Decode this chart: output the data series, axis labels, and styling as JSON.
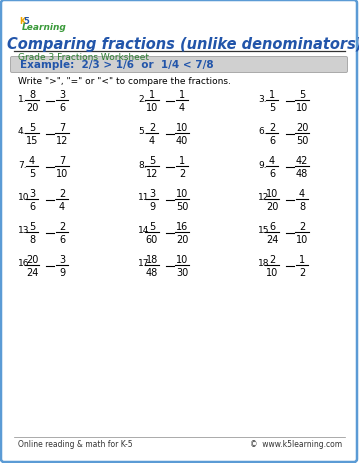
{
  "title": "Comparing fractions (unlike denominators)",
  "subtitle": "Grade 3 Fractions Worksheet",
  "example_text": "Example:  2/3 > 1/6  or  1/4 < 7/8",
  "instruction": "Write \">\", \"=\" or \"<\" to compare the fractions.",
  "border_color": "#5b9bd5",
  "title_color": "#2255aa",
  "subtitle_color": "#2e7d32",
  "example_bg": "#d0d0d0",
  "example_color": "#2255aa",
  "footer_left": "Online reading & math for K-5",
  "footer_right": "©  www.k5learning.com",
  "problems": [
    {
      "num": "1.",
      "n1": "8",
      "d1": "20",
      "n2": "3",
      "d2": "6"
    },
    {
      "num": "2.",
      "n1": "1",
      "d1": "10",
      "n2": "1",
      "d2": "4"
    },
    {
      "num": "3.",
      "n1": "1",
      "d1": "5",
      "n2": "5",
      "d2": "10"
    },
    {
      "num": "4.",
      "n1": "5",
      "d1": "15",
      "n2": "7",
      "d2": "12"
    },
    {
      "num": "5.",
      "n1": "2",
      "d1": "4",
      "n2": "10",
      "d2": "40"
    },
    {
      "num": "6.",
      "n1": "2",
      "d1": "6",
      "n2": "20",
      "d2": "50"
    },
    {
      "num": "7.",
      "n1": "4",
      "d1": "5",
      "n2": "7",
      "d2": "10"
    },
    {
      "num": "8.",
      "n1": "5",
      "d1": "12",
      "n2": "1",
      "d2": "2"
    },
    {
      "num": "9.",
      "n1": "4",
      "d1": "6",
      "n2": "42",
      "d2": "48"
    },
    {
      "num": "10.",
      "n1": "3",
      "d1": "6",
      "n2": "2",
      "d2": "4"
    },
    {
      "num": "11.",
      "n1": "3",
      "d1": "9",
      "n2": "10",
      "d2": "50"
    },
    {
      "num": "12.",
      "n1": "10",
      "d1": "20",
      "n2": "4",
      "d2": "8"
    },
    {
      "num": "13.",
      "n1": "5",
      "d1": "8",
      "n2": "2",
      "d2": "6"
    },
    {
      "num": "14.",
      "n1": "5",
      "d1": "60",
      "n2": "16",
      "d2": "20"
    },
    {
      "num": "15.",
      "n1": "6",
      "d1": "24",
      "n2": "2",
      "d2": "10"
    },
    {
      "num": "16.",
      "n1": "20",
      "d1": "24",
      "n2": "3",
      "d2": "9"
    },
    {
      "num": "17.",
      "n1": "18",
      "d1": "48",
      "n2": "10",
      "d2": "30"
    },
    {
      "num": "18.",
      "n1": "2",
      "d1": "10",
      "n2": "1",
      "d2": "2"
    }
  ]
}
